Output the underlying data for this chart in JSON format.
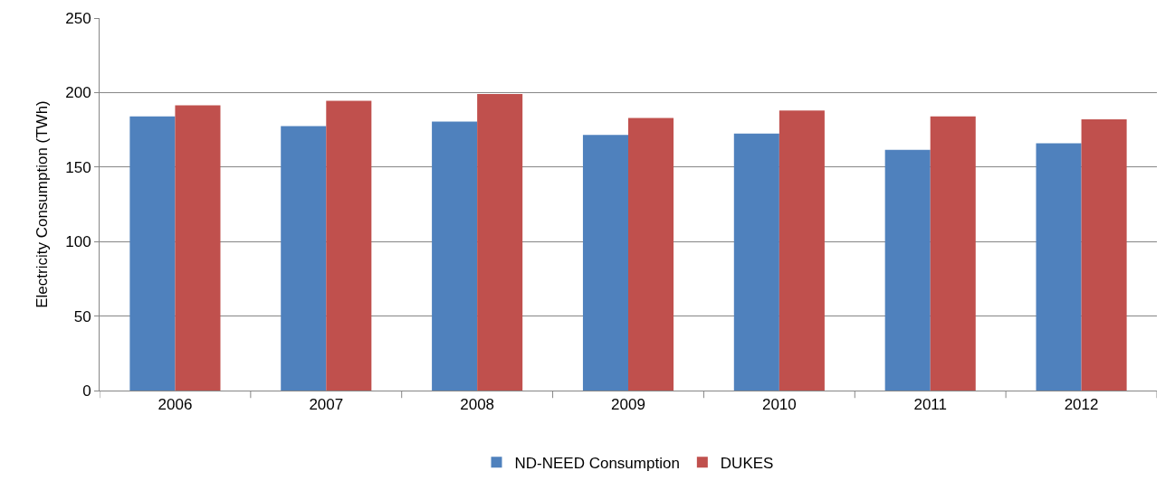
{
  "chart_data": {
    "type": "bar",
    "ylabel": "Electricity Consumption (TWh)",
    "categories": [
      "2006",
      "2007",
      "2008",
      "2009",
      "2010",
      "2011",
      "2012"
    ],
    "series": [
      {
        "name": "ND-NEED Consumption",
        "color": "#4f81bd",
        "values": [
          184,
          177.5,
          180.5,
          171.5,
          172.5,
          161.5,
          166
        ]
      },
      {
        "name": "DUKES",
        "color": "#c0504d",
        "values": [
          191.5,
          194.5,
          199,
          183,
          188,
          184,
          182
        ]
      }
    ],
    "ylim": [
      0,
      250
    ],
    "yticks": [
      0,
      50,
      100,
      150,
      200,
      250
    ],
    "grid": "y",
    "legend": "bottom"
  }
}
